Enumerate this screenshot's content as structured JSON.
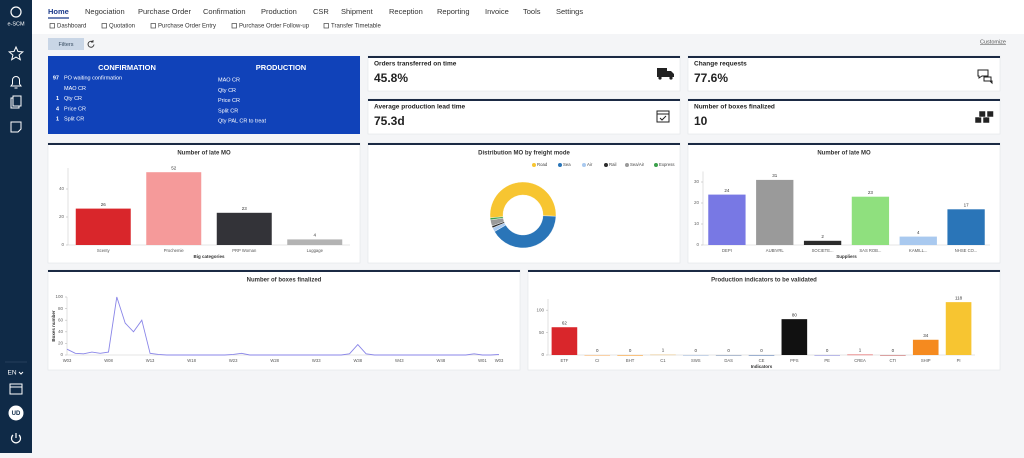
{
  "sidebar": {
    "logo": "e-SCM",
    "lang": "EN",
    "user": "UD"
  },
  "nav": [
    "Home",
    "Negociation",
    "Purchase Order",
    "Confirmation",
    "Production",
    "CSR",
    "Shipment",
    "Reception",
    "Reporting",
    "Invoice",
    "Tools",
    "Settings"
  ],
  "subnav": [
    "Dashboard",
    "Quotation",
    "Purchase Order Entry",
    "Purchase Order Follow-up",
    "Transfer Timetable"
  ],
  "filters": "Filters",
  "customize": "Customize",
  "summary": {
    "confirmation": {
      "title": "CONFIRMATION",
      "rows": [
        {
          "count": 97,
          "label": "PO waiting confirmation"
        },
        {
          "label": "MAO CR"
        },
        {
          "count": 1,
          "label": "Qty CR"
        },
        {
          "count": 4,
          "label": "Price CR"
        },
        {
          "count": 1,
          "label": "Split CR"
        }
      ]
    },
    "production": {
      "title": "PRODUCTION",
      "rows": [
        {
          "label": "MAO CR"
        },
        {
          "label": "Qty CR"
        },
        {
          "label": "Price CR"
        },
        {
          "label": "Split CR"
        },
        {
          "label": "Qty PAL CR to treat"
        }
      ]
    }
  },
  "kpis": [
    {
      "title": "Orders transferred on time",
      "value": "45.8%"
    },
    {
      "title": "Change requests",
      "value": "77.6%"
    },
    {
      "title": "Average production lead time",
      "value": "75.3d"
    },
    {
      "title": "Number of boxes finalized",
      "value": "10"
    }
  ],
  "chart_data": [
    {
      "type": "bar",
      "title": "Number of late MO",
      "xlabel": "Big categories",
      "categories": [
        "Scenty",
        "Prochemie",
        "PRP Woman",
        "Luggage"
      ],
      "values": [
        26,
        52,
        23,
        4
      ],
      "colors": [
        "#d9262b",
        "#f59a9a",
        "#333338",
        "#b3b3b3"
      ],
      "ylim": [
        0,
        55
      ],
      "yticks": [
        0,
        20,
        40
      ]
    },
    {
      "type": "pie",
      "title": "Distribution MO by freight mode",
      "categories": [
        "Road",
        "Sea",
        "Air",
        "Rail",
        "Sea/Air",
        "Express"
      ],
      "values": [
        52,
        41,
        2,
        1,
        3,
        1
      ],
      "colors": [
        "#f7c531",
        "#2a75b8",
        "#a9c9ef",
        "#2b2b2b",
        "#9a9a9a",
        "#3aa04a"
      ]
    },
    {
      "type": "bar",
      "title": "Number of late MO",
      "xlabel": "Suppliers",
      "categories": [
        "DEPI",
        "AUBIVRL",
        "SOCIETE...",
        "SAS ROB...",
        "KAMILL...",
        "NHSE CO..."
      ],
      "values": [
        24,
        31,
        2,
        23,
        4,
        17
      ],
      "colors": [
        "#7878e4",
        "#9a9a9a",
        "#2b2b2b",
        "#8fe07e",
        "#a9c9ef",
        "#2a75b8"
      ],
      "ylim": [
        0,
        35
      ],
      "yticks": [
        0,
        10,
        20,
        30
      ]
    },
    {
      "type": "line",
      "title": "Number of boxes finalized",
      "ylabel": "Boxes number",
      "color": "#8a86e8",
      "categories": [
        "W03",
        null,
        null,
        null,
        null,
        "W08",
        null,
        null,
        null,
        null,
        "W13",
        null,
        null,
        null,
        null,
        "W18",
        null,
        null,
        null,
        null,
        "W23",
        null,
        null,
        null,
        null,
        "W28",
        null,
        null,
        null,
        null,
        "W33",
        null,
        null,
        null,
        null,
        "W38",
        null,
        null,
        null,
        null,
        "W43",
        null,
        null,
        null,
        null,
        "W48",
        null,
        null,
        null,
        null,
        "W01",
        null,
        "W03"
      ],
      "values": [
        10,
        3,
        2,
        5,
        3,
        5,
        100,
        55,
        40,
        60,
        3,
        1,
        0,
        0,
        0,
        0,
        0,
        0,
        0,
        0,
        1,
        3,
        0,
        0,
        0,
        0,
        0,
        0,
        0,
        0,
        0,
        0,
        0,
        0,
        2,
        18,
        2,
        0,
        0,
        0,
        0,
        0,
        0,
        0,
        0,
        0,
        0,
        0,
        0,
        2,
        0,
        0,
        1
      ],
      "ylim": [
        0,
        100
      ],
      "yticks": [
        0,
        20,
        40,
        60,
        80,
        100
      ]
    },
    {
      "type": "bar",
      "title": "Production indicators to be validated",
      "xlabel": "Indicators",
      "categories": [
        "ETF",
        "CI",
        "BHT",
        "C1",
        "SWS",
        "DAS",
        "CE",
        "PPS",
        "PE",
        "CREA",
        "CTI",
        "SHIP",
        "PI"
      ],
      "values": [
        62,
        0,
        0,
        1,
        0,
        0,
        0,
        80,
        0,
        1,
        0,
        34,
        118
      ],
      "colors": [
        "#d9262b",
        "#f6b26b",
        "#f59a2a",
        "#e8c48a",
        "#9fb8d8",
        "#7a8fb0",
        "#5b7bb0",
        "#111111",
        "#8a8ad8",
        "#e05050",
        "#c06060",
        "#f58a1f",
        "#f7c531"
      ],
      "ylim": [
        0,
        125
      ],
      "yticks": [
        0,
        50,
        100
      ]
    }
  ]
}
